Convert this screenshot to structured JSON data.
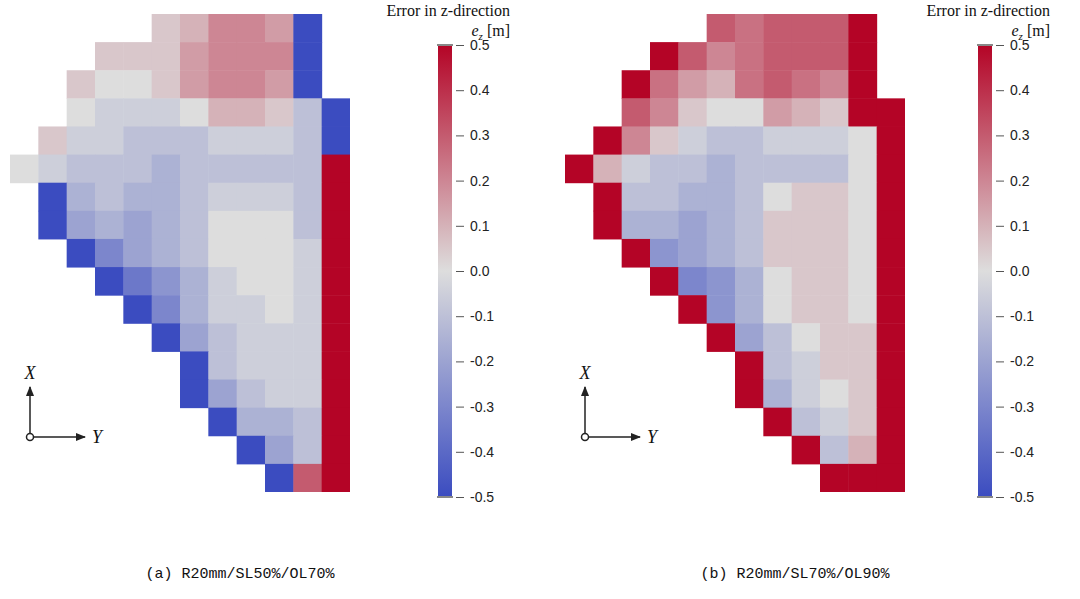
{
  "chart_data": [
    {
      "type": "heatmap",
      "title": "(a) R20mm/SL50%/OL70%",
      "axis_labels": {
        "vertical": "X",
        "horizontal": "Y"
      },
      "colorbar": {
        "title": "Error in z-direction",
        "symbol": "e",
        "subscript": "z",
        "unit": "[m]",
        "range": [
          -0.5,
          0.5
        ],
        "ticks": [
          0.5,
          0.4,
          0.3,
          0.2,
          0.1,
          {
            "value": 0,
            "label": "0.0"
          },
          -0.1,
          -0.2,
          -0.3,
          -0.4,
          -0.5
        ]
      },
      "cells": [
        [
          null,
          null,
          null,
          null,
          null,
          0.05,
          0.1,
          0.2,
          0.2,
          0.15,
          -0.5,
          null
        ],
        [
          null,
          null,
          null,
          0.05,
          0.05,
          0.05,
          0.15,
          0.2,
          0.2,
          0.2,
          -0.5,
          null
        ],
        [
          null,
          null,
          0.05,
          0,
          0,
          0.05,
          0.15,
          0.2,
          0.2,
          0.15,
          -0.5,
          null
        ],
        [
          null,
          null,
          0,
          -0.05,
          -0.05,
          -0.05,
          0,
          0.1,
          0.1,
          0.05,
          -0.1,
          -0.5
        ],
        [
          null,
          0.05,
          -0.05,
          -0.05,
          -0.1,
          -0.1,
          -0.1,
          -0.05,
          -0.05,
          -0.05,
          -0.1,
          -0.5
        ],
        [
          0,
          -0.05,
          -0.1,
          -0.1,
          -0.1,
          -0.15,
          -0.1,
          -0.1,
          -0.1,
          -0.1,
          -0.1,
          0.5
        ],
        [
          null,
          -0.5,
          -0.15,
          -0.1,
          -0.15,
          -0.15,
          -0.1,
          -0.05,
          -0.05,
          -0.05,
          -0.1,
          0.5
        ],
        [
          null,
          -0.5,
          -0.2,
          -0.15,
          -0.2,
          -0.15,
          -0.1,
          0,
          0,
          0,
          -0.1,
          0.5
        ],
        [
          null,
          null,
          -0.5,
          -0.3,
          -0.2,
          -0.15,
          -0.1,
          0,
          0,
          0,
          -0.05,
          0.5
        ],
        [
          null,
          null,
          null,
          -0.5,
          -0.35,
          -0.25,
          -0.15,
          -0.05,
          0,
          0,
          -0.05,
          0.5
        ],
        [
          null,
          null,
          null,
          null,
          -0.5,
          -0.3,
          -0.15,
          -0.05,
          -0.05,
          0,
          -0.05,
          0.5
        ],
        [
          null,
          null,
          null,
          null,
          null,
          -0.5,
          -0.2,
          -0.1,
          -0.05,
          -0.05,
          -0.05,
          0.5
        ],
        [
          null,
          null,
          null,
          null,
          null,
          null,
          -0.5,
          -0.1,
          -0.05,
          -0.05,
          -0.05,
          0.5
        ],
        [
          null,
          null,
          null,
          null,
          null,
          null,
          -0.5,
          -0.2,
          -0.1,
          -0.05,
          -0.05,
          0.5
        ],
        [
          null,
          null,
          null,
          null,
          null,
          null,
          null,
          -0.5,
          -0.15,
          -0.15,
          -0.1,
          0.5
        ],
        [
          null,
          null,
          null,
          null,
          null,
          null,
          null,
          null,
          -0.5,
          -0.2,
          -0.1,
          0.5
        ],
        [
          null,
          null,
          null,
          null,
          null,
          null,
          null,
          null,
          null,
          -0.5,
          0.3,
          0.5
        ]
      ]
    },
    {
      "type": "heatmap",
      "title": "(b) R20mm/SL70%/OL90%",
      "axis_labels": {
        "vertical": "X",
        "horizontal": "Y"
      },
      "colorbar": {
        "title": "Error in z-direction",
        "symbol": "e",
        "subscript": "z",
        "unit": "[m]",
        "range": [
          -0.5,
          0.5
        ],
        "ticks": [
          0.5,
          0.4,
          0.3,
          0.2,
          0.1,
          {
            "value": 0,
            "label": "0.0"
          },
          -0.1,
          -0.2,
          -0.3,
          -0.4,
          -0.5
        ]
      },
      "cells": [
        [
          null,
          null,
          null,
          null,
          null,
          0.3,
          0.25,
          0.3,
          0.3,
          0.3,
          0.5,
          null
        ],
        [
          null,
          null,
          null,
          0.5,
          0.3,
          0.2,
          0.25,
          0.3,
          0.3,
          0.3,
          0.5,
          null
        ],
        [
          null,
          null,
          0.5,
          0.25,
          0.15,
          0.1,
          0.25,
          0.3,
          0.25,
          0.2,
          0.5,
          null
        ],
        [
          null,
          null,
          0.3,
          0.2,
          0.05,
          0,
          0,
          0.15,
          0.1,
          0.05,
          0.5,
          0.5
        ],
        [
          null,
          0.5,
          0.2,
          0.05,
          -0.05,
          -0.1,
          -0.1,
          -0.05,
          -0.05,
          -0.05,
          0,
          0.5
        ],
        [
          0.5,
          0.1,
          -0.05,
          -0.1,
          -0.1,
          -0.15,
          -0.1,
          -0.1,
          -0.1,
          -0.1,
          0,
          0.5
        ],
        [
          null,
          0.5,
          -0.1,
          -0.1,
          -0.15,
          -0.15,
          -0.1,
          0,
          0.05,
          0.05,
          0,
          0.5
        ],
        [
          null,
          0.5,
          -0.15,
          -0.15,
          -0.2,
          -0.15,
          -0.1,
          0.05,
          0.05,
          0.05,
          0,
          0.5
        ],
        [
          null,
          null,
          0.5,
          -0.25,
          -0.2,
          -0.15,
          -0.1,
          0.05,
          0.05,
          0.05,
          0,
          0.5
        ],
        [
          null,
          null,
          null,
          0.5,
          -0.3,
          -0.25,
          -0.15,
          0,
          0.05,
          0.05,
          0,
          0.5
        ],
        [
          null,
          null,
          null,
          null,
          0.5,
          -0.25,
          -0.15,
          0,
          0.05,
          0.05,
          0,
          0.5
        ],
        [
          null,
          null,
          null,
          null,
          null,
          0.5,
          -0.2,
          -0.1,
          0,
          0.05,
          0.05,
          0.5
        ],
        [
          null,
          null,
          null,
          null,
          null,
          null,
          0.5,
          -0.1,
          -0.05,
          0.05,
          0.05,
          0.5
        ],
        [
          null,
          null,
          null,
          null,
          null,
          null,
          0.5,
          -0.15,
          -0.05,
          0,
          0.05,
          0.5
        ],
        [
          null,
          null,
          null,
          null,
          null,
          null,
          null,
          0.5,
          -0.1,
          -0.05,
          0.05,
          0.5
        ],
        [
          null,
          null,
          null,
          null,
          null,
          null,
          null,
          null,
          0.5,
          -0.1,
          0.1,
          0.5
        ],
        [
          null,
          null,
          null,
          null,
          null,
          null,
          null,
          null,
          null,
          0.5,
          0.5,
          0.5
        ]
      ]
    }
  ]
}
